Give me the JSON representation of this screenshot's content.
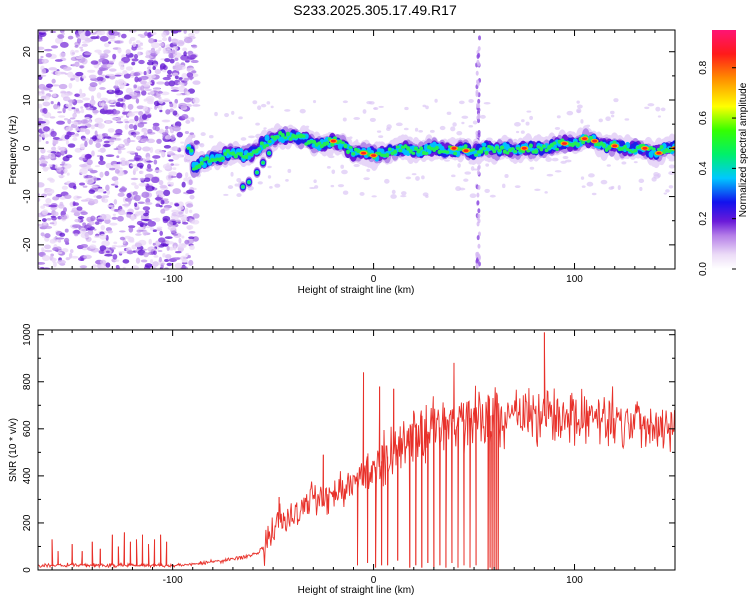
{
  "title": "S233.2025.305.17.49.R17",
  "chart_data": [
    {
      "type": "heatmap",
      "xlabel": "Height of straight line (km)",
      "ylabel": "Frequency (Hz)",
      "xlim": [
        -167,
        150
      ],
      "ylim": [
        -25,
        24.5
      ],
      "xticks": [
        -100,
        0,
        100
      ],
      "yticks": [
        -20,
        -10,
        0,
        10,
        20
      ],
      "colorbar": {
        "label": "Normalized spectral amplitude",
        "range": [
          0,
          0.95
        ],
        "ticks": [
          0.0,
          0.2,
          0.4,
          0.6,
          0.8
        ]
      },
      "trace": [
        [
          -90,
          -4
        ],
        [
          -85,
          -3
        ],
        [
          -80,
          -2
        ],
        [
          -75,
          -1.5
        ],
        [
          -70,
          -1
        ],
        [
          -65,
          -1.5
        ],
        [
          -60,
          -1
        ],
        [
          -55,
          1
        ],
        [
          -50,
          2
        ],
        [
          -45,
          2.5
        ],
        [
          -40,
          2.5
        ],
        [
          -35,
          2
        ],
        [
          -30,
          1
        ],
        [
          -25,
          0.5
        ],
        [
          -20,
          1.5
        ],
        [
          -15,
          0.5
        ],
        [
          -10,
          -1
        ],
        [
          -5,
          -0.5
        ],
        [
          0,
          -1.5
        ],
        [
          5,
          -1
        ],
        [
          10,
          -0.5
        ],
        [
          15,
          0
        ],
        [
          20,
          -0.5
        ],
        [
          25,
          -0.5
        ],
        [
          30,
          0
        ],
        [
          35,
          -0.5
        ],
        [
          40,
          -0.5
        ],
        [
          45,
          0
        ],
        [
          50,
          -1
        ],
        [
          55,
          0
        ],
        [
          60,
          -0.5
        ],
        [
          65,
          0
        ],
        [
          70,
          -0.5
        ],
        [
          75,
          0
        ],
        [
          80,
          0
        ],
        [
          85,
          0
        ],
        [
          90,
          0.5
        ],
        [
          95,
          1
        ],
        [
          100,
          1
        ],
        [
          105,
          2
        ],
        [
          110,
          1.5
        ],
        [
          115,
          0.5
        ],
        [
          120,
          0.5
        ],
        [
          125,
          0
        ],
        [
          130,
          0
        ],
        [
          135,
          0
        ],
        [
          140,
          -1
        ],
        [
          145,
          0
        ],
        [
          150,
          0
        ]
      ],
      "branch": [
        [
          -65,
          -8
        ],
        [
          -62,
          -7
        ],
        [
          -58,
          -5
        ],
        [
          -55,
          -3
        ],
        [
          -52,
          -1
        ]
      ]
    },
    {
      "type": "line",
      "xlabel": "Height of straight line (km)",
      "ylabel": "SNR (10 * v/v)",
      "xlim": [
        -167,
        150
      ],
      "ylim": [
        0,
        1020
      ],
      "xticks": [
        -100,
        0,
        100
      ],
      "yticks": [
        0,
        200,
        400,
        600,
        800,
        1000
      ],
      "series": [
        {
          "color": "#e8312a",
          "baseline": [
            [
              -167,
              20
            ],
            [
              -140,
              20
            ],
            [
              -110,
              20
            ],
            [
              -95,
              20
            ],
            [
              -85,
              30
            ],
            [
              -75,
              40
            ],
            [
              -65,
              55
            ],
            [
              -58,
              70
            ],
            [
              -52,
              120
            ],
            [
              -48,
              220
            ],
            [
              -44,
              200
            ],
            [
              -38,
              240
            ],
            [
              -30,
              300
            ],
            [
              -20,
              330
            ],
            [
              -10,
              380
            ],
            [
              -5,
              400
            ],
            [
              0,
              430
            ],
            [
              5,
              470
            ],
            [
              10,
              500
            ],
            [
              15,
              530
            ],
            [
              20,
              560
            ],
            [
              25,
              580
            ],
            [
              30,
              600
            ],
            [
              35,
              610
            ],
            [
              40,
              630
            ],
            [
              45,
              640
            ],
            [
              50,
              650
            ],
            [
              55,
              650
            ],
            [
              60,
              660
            ],
            [
              65,
              650
            ],
            [
              70,
              650
            ],
            [
              80,
              660
            ],
            [
              90,
              650
            ],
            [
              100,
              650
            ],
            [
              110,
              640
            ],
            [
              120,
              640
            ],
            [
              130,
              630
            ],
            [
              140,
              620
            ],
            [
              150,
              640
            ]
          ],
          "spikes": [
            [
              -160,
              130
            ],
            [
              -157,
              80
            ],
            [
              -150,
              110
            ],
            [
              -145,
              80
            ],
            [
              -140,
              120
            ],
            [
              -136,
              90
            ],
            [
              -130,
              150
            ],
            [
              -127,
              100
            ],
            [
              -124,
              160
            ],
            [
              -121,
              120
            ],
            [
              -118,
              130
            ],
            [
              -115,
              150
            ],
            [
              -112,
              110
            ],
            [
              -109,
              130
            ],
            [
              -106,
              150
            ],
            [
              -103,
              120
            ],
            [
              -47,
              310
            ],
            [
              -25,
              490
            ],
            [
              -5,
              840
            ],
            [
              3,
              780
            ],
            [
              10,
              770
            ],
            [
              40,
              880
            ],
            [
              85,
              1010
            ]
          ],
          "dips": [
            [
              -8,
              20
            ],
            [
              -3,
              30
            ],
            [
              1,
              10
            ],
            [
              4,
              20
            ],
            [
              7,
              20
            ],
            [
              12,
              40
            ],
            [
              18,
              10
            ],
            [
              21,
              20
            ],
            [
              24,
              10
            ],
            [
              27,
              30
            ],
            [
              30,
              10
            ],
            [
              33,
              20
            ],
            [
              36,
              10
            ],
            [
              39,
              30
            ],
            [
              42,
              10
            ],
            [
              45,
              20
            ],
            [
              48,
              10
            ],
            [
              51,
              20
            ],
            [
              57,
              0
            ],
            [
              58,
              10
            ],
            [
              59,
              0
            ],
            [
              60,
              10
            ],
            [
              61,
              0
            ],
            [
              62,
              0
            ]
          ]
        }
      ]
    }
  ]
}
